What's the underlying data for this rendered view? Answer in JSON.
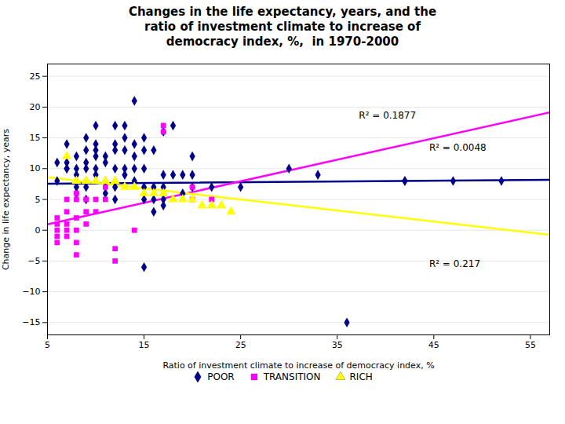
{
  "chart_data": {
    "type": "scatter",
    "title": "Changes in the life expectancy, years, and the\nratio of investment climate to increase of\ndemocracy index, %,  in 1970-2000",
    "xlabel": "Ratio of investment climate to increase of democracy index, %",
    "ylabel": "Change in life expectancy, years",
    "xlim": [
      5,
      57
    ],
    "ylim": [
      -17,
      27
    ],
    "xticks": [
      5,
      15,
      25,
      35,
      45,
      55
    ],
    "yticks": [
      -15,
      -10,
      -5,
      0,
      5,
      10,
      15,
      20,
      25
    ],
    "grid": "y",
    "legend": "lower center",
    "annotations": [
      "R² = 0.1877",
      "R² = 0.0048",
      "R² = 0.217"
    ],
    "series": [
      {
        "name": "POOR",
        "color": "#00008B",
        "marker": "diamond",
        "x": [
          6,
          6,
          7,
          7,
          7,
          7,
          8,
          8,
          8,
          8,
          8,
          8,
          9,
          9,
          9,
          9,
          9,
          9,
          9,
          10,
          10,
          10,
          10,
          10,
          10,
          11,
          11,
          11,
          11,
          12,
          12,
          12,
          12,
          12,
          12,
          12,
          13,
          13,
          13,
          13,
          13,
          14,
          14,
          14,
          14,
          14,
          15,
          15,
          15,
          15,
          15,
          15,
          16,
          16,
          16,
          16,
          17,
          17,
          17,
          17,
          17,
          18,
          18,
          19,
          19,
          20,
          20,
          20,
          22,
          25,
          30,
          33,
          36,
          42,
          42,
          47,
          52
        ],
        "values": [
          11,
          8,
          14,
          11,
          10,
          10,
          12,
          10,
          9,
          8,
          7,
          6,
          15,
          13,
          11,
          10,
          8,
          7,
          5,
          17,
          14,
          13,
          12,
          10,
          9,
          12,
          11,
          8,
          6,
          17,
          14,
          13,
          10,
          8,
          7,
          5,
          17,
          15,
          13,
          10,
          9,
          21,
          14,
          12,
          10,
          8,
          15,
          13,
          10,
          7,
          5,
          -6,
          13,
          7,
          5,
          3,
          16,
          9,
          7,
          5,
          4,
          17,
          9,
          9,
          6,
          12,
          9,
          7,
          7,
          7,
          10,
          9,
          -15,
          8,
          8,
          8,
          8
        ],
        "trend": {
          "x": [
            5,
            57
          ],
          "values": [
            7.56,
            8.184
          ]
        }
      },
      {
        "name": "TRANSITION",
        "color": "#FF00FF",
        "marker": "square",
        "x": [
          6,
          6,
          6,
          6,
          6,
          7,
          7,
          7,
          7,
          7,
          8,
          8,
          8,
          8,
          8,
          8,
          9,
          9,
          9,
          10,
          10,
          11,
          11,
          12,
          12,
          14,
          17,
          17,
          20,
          20,
          22
        ],
        "values": [
          2,
          1,
          0,
          -1,
          -2,
          5,
          3,
          1,
          0,
          -1,
          6,
          5,
          2,
          0,
          -2,
          -4,
          5,
          3,
          1,
          5,
          3,
          7,
          5,
          -3,
          -5,
          0,
          17,
          16,
          7,
          5,
          5
        ],
        "trend": {
          "x": [
            5,
            57
          ],
          "values": [
            0.95,
            19.15
          ]
        }
      },
      {
        "name": "RICH",
        "color": "#FFFF00",
        "marker": "triangle",
        "x": [
          7,
          8,
          9,
          10,
          11,
          12,
          13,
          14,
          15,
          16,
          17,
          18,
          19,
          20,
          21,
          22,
          23,
          24
        ],
        "values": [
          12,
          8,
          8,
          8,
          8,
          8,
          7,
          7,
          6,
          6,
          6,
          5,
          5,
          5,
          4,
          4,
          4,
          3
        ],
        "trend": {
          "x": [
            5,
            57
          ],
          "values": [
            8.6,
            -0.76
          ]
        }
      }
    ]
  }
}
